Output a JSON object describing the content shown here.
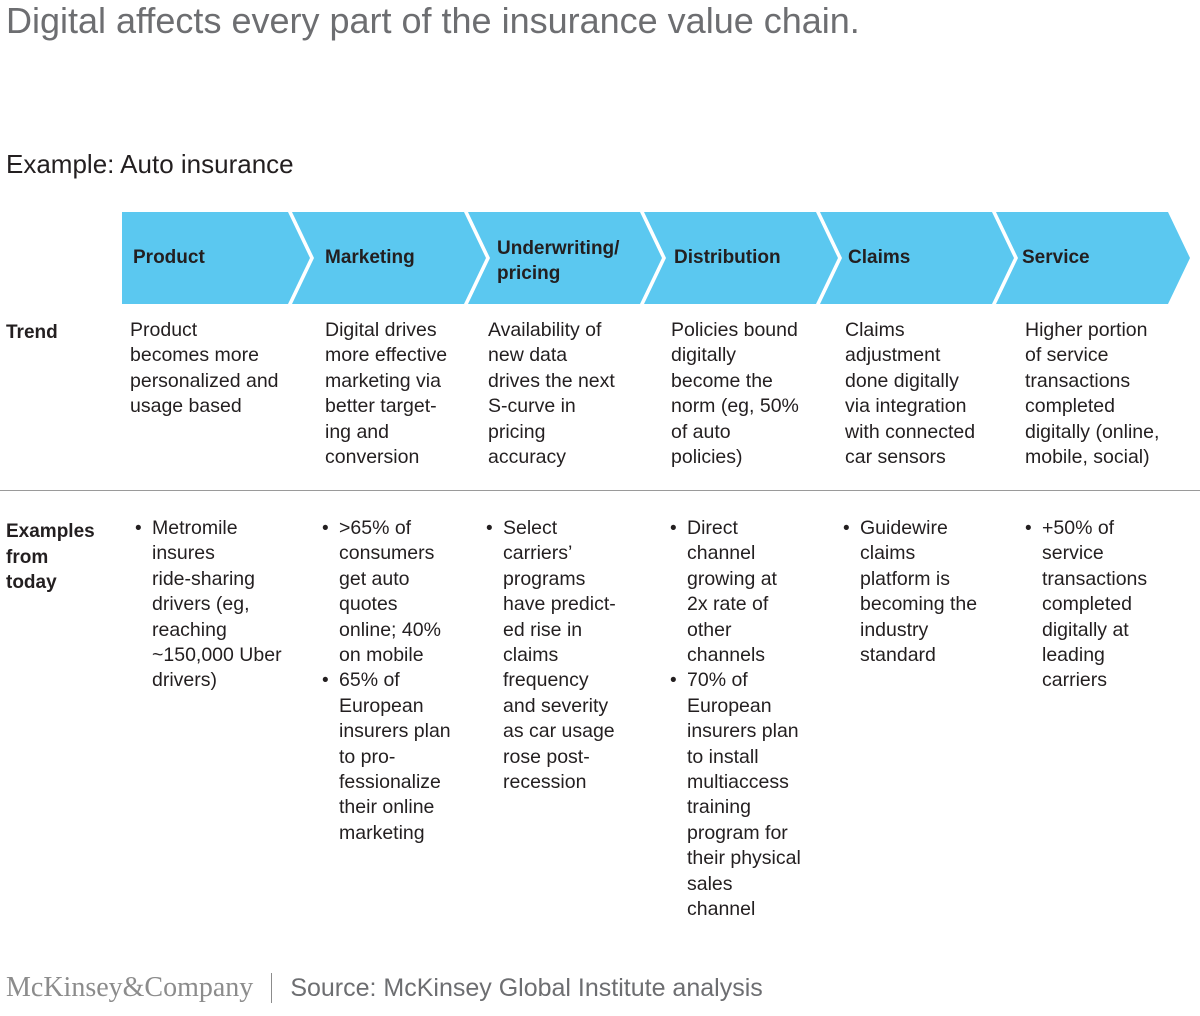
{
  "title": "Digital affects every part of the insurance value chain.",
  "subtitle": "Example: Auto insurance",
  "accent_color": "#5bc8f0",
  "stages": [
    {
      "label": "Product"
    },
    {
      "label": "Marketing"
    },
    {
      "label_line1": "Underwriting/",
      "label_line2": "pricing"
    },
    {
      "label": "Distribution"
    },
    {
      "label": "Claims"
    },
    {
      "label": "Service"
    }
  ],
  "rows": {
    "trend_label": "Trend",
    "examples_label_line1": "Examples",
    "examples_label_line2": "from",
    "examples_label_line3": "today"
  },
  "trends": [
    [
      "Product",
      "becomes more",
      "personalized and",
      "usage based"
    ],
    [
      "Digital drives",
      "more effective",
      "marketing via",
      "better target-",
      "ing and",
      "conversion"
    ],
    [
      "Availability of",
      "new data",
      "drives the next",
      "S-curve in",
      "pricing",
      "accuracy"
    ],
    [
      "Policies bound",
      "digitally",
      "become the",
      "norm (eg, 50%",
      "of auto",
      "policies)"
    ],
    [
      "Claims",
      "adjustment",
      "done digitally",
      "via integration",
      "with connected",
      "car sensors"
    ],
    [
      "Higher portion",
      "of service",
      "transactions",
      "completed",
      "digitally (online,",
      "mobile, social)"
    ]
  ],
  "examples": [
    [
      [
        "Metromile",
        "insures",
        "ride-sharing",
        "drivers (eg,",
        "reaching",
        "~150,000 Uber",
        "drivers)"
      ]
    ],
    [
      [
        ">65% of",
        "consumers",
        "get auto",
        "quotes",
        "online; 40%",
        "on mobile"
      ],
      [
        "65% of",
        "European",
        "insurers plan",
        "to pro-",
        "fessionalize",
        "their online",
        "marketing"
      ]
    ],
    [
      [
        "Select",
        "carriers’",
        "programs",
        "have predict-",
        "ed rise in",
        "claims",
        "frequency",
        "and severity",
        "as car usage",
        "rose post-",
        "recession"
      ]
    ],
    [
      [
        "Direct",
        "channel",
        "growing at",
        "2x rate of",
        "other",
        "channels"
      ],
      [
        "70% of",
        "European",
        "insurers plan",
        "to install",
        "multiaccess",
        "training",
        "program for",
        "their physical",
        "sales",
        "channel"
      ]
    ],
    [
      [
        "Guidewire",
        "claims",
        "platform is",
        "becoming the",
        "industry",
        "standard"
      ]
    ],
    [
      [
        "+50% of",
        "service",
        "transactions",
        "completed",
        "digitally at",
        "leading",
        "carriers"
      ]
    ]
  ],
  "footer": {
    "logo": "McKinsey&Company",
    "source": "Source: McKinsey Global Institute analysis"
  }
}
